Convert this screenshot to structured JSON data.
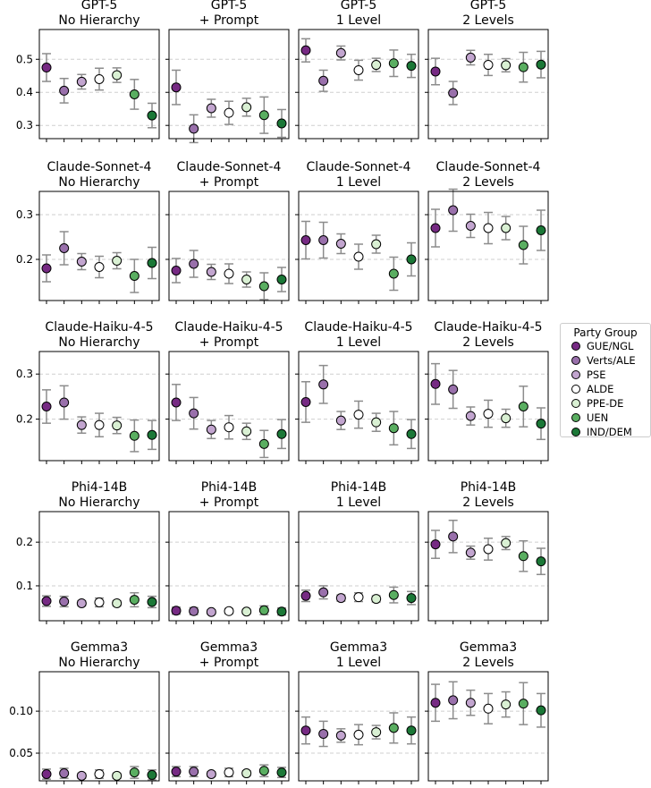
{
  "chart_data": {
    "type": "scatter",
    "description_of_markers": "point estimates with error bars per party group",
    "legend": {
      "title": "Party Group",
      "placement": "right",
      "entries": [
        {
          "name": "GUE/NGL",
          "color": "#762a83"
        },
        {
          "name": "Verts/ALE",
          "color": "#9970ab"
        },
        {
          "name": "PSE",
          "color": "#c2a5cf"
        },
        {
          "name": "ALDE",
          "color": "#ffffff"
        },
        {
          "name": "PPE-DE",
          "color": "#d9f0d3"
        },
        {
          "name": "UEN",
          "color": "#5aae61"
        },
        {
          "name": "IND/DEM",
          "color": "#1b7837"
        }
      ]
    },
    "grid": "dashed horizontal",
    "rows": [
      {
        "model": "GPT-5",
        "yticks": [
          "0.3",
          "0.4",
          "0.5"
        ],
        "yticks_values": [
          0.3,
          0.4,
          0.5
        ],
        "ylim": [
          0.26,
          0.59
        ],
        "panels": [
          {
            "title_line1": "GPT-5",
            "title_line2": "No Hierarchy",
            "values": [
              0.475,
              0.405,
              0.432,
              0.44,
              0.452,
              0.394,
              0.33
            ],
            "errors": [
              0.042,
              0.037,
              0.022,
              0.033,
              0.022,
              0.045,
              0.037
            ]
          },
          {
            "title_line1": "GPT-5",
            "title_line2": "+ Prompt",
            "values": [
              0.415,
              0.29,
              0.352,
              0.338,
              0.355,
              0.331,
              0.306
            ],
            "errors": [
              0.052,
              0.042,
              0.027,
              0.035,
              0.027,
              0.055,
              0.042
            ]
          },
          {
            "title_line1": "GPT-5",
            "title_line2": "1 Level",
            "values": [
              0.527,
              0.435,
              0.519,
              0.467,
              0.483,
              0.488,
              0.48
            ],
            "errors": [
              0.035,
              0.032,
              0.021,
              0.03,
              0.02,
              0.04,
              0.035
            ]
          },
          {
            "title_line1": "GPT-5",
            "title_line2": "2 Levels",
            "values": [
              0.463,
              0.398,
              0.505,
              0.483,
              0.482,
              0.476,
              0.484
            ],
            "errors": [
              0.04,
              0.035,
              0.022,
              0.032,
              0.02,
              0.045,
              0.04
            ]
          }
        ]
      },
      {
        "model": "Claude-Sonnet-4",
        "yticks": [
          "0.2",
          "0.3"
        ],
        "yticks_values": [
          0.2,
          0.3
        ],
        "ylim": [
          0.108,
          0.352
        ],
        "panels": [
          {
            "title_line1": "Claude-Sonnet-4",
            "title_line2": "No Hierarchy",
            "values": [
              0.18,
              0.225,
              0.195,
              0.183,
              0.197,
              0.163,
              0.192
            ],
            "errors": [
              0.03,
              0.037,
              0.018,
              0.024,
              0.018,
              0.037,
              0.035
            ]
          },
          {
            "title_line1": "Claude-Sonnet-4",
            "title_line2": "+ Prompt",
            "values": [
              0.175,
              0.19,
              0.172,
              0.168,
              0.155,
              0.14,
              0.155
            ],
            "errors": [
              0.027,
              0.03,
              0.017,
              0.022,
              0.017,
              0.03,
              0.027
            ]
          },
          {
            "title_line1": "Claude-Sonnet-4",
            "title_line2": "1 Level",
            "values": [
              0.243,
              0.243,
              0.235,
              0.206,
              0.234,
              0.168,
              0.2
            ],
            "errors": [
              0.042,
              0.04,
              0.022,
              0.028,
              0.02,
              0.037,
              0.037
            ]
          },
          {
            "title_line1": "Claude-Sonnet-4",
            "title_line2": "2 Levels",
            "values": [
              0.27,
              0.31,
              0.275,
              0.27,
              0.27,
              0.232,
              0.265
            ],
            "errors": [
              0.042,
              0.047,
              0.026,
              0.035,
              0.026,
              0.042,
              0.045
            ]
          }
        ]
      },
      {
        "model": "Claude-Haiku-4-5",
        "yticks": [
          "0.2",
          "0.3"
        ],
        "yticks_values": [
          0.2,
          0.3
        ],
        "ylim": [
          0.108,
          0.35
        ],
        "panels": [
          {
            "title_line1": "Claude-Haiku-4-5",
            "title_line2": "No Hierarchy",
            "values": [
              0.228,
              0.237,
              0.187,
              0.187,
              0.186,
              0.163,
              0.165
            ],
            "errors": [
              0.037,
              0.037,
              0.018,
              0.026,
              0.018,
              0.035,
              0.032
            ]
          },
          {
            "title_line1": "Claude-Haiku-4-5",
            "title_line2": "+ Prompt",
            "values": [
              0.237,
              0.213,
              0.177,
              0.182,
              0.173,
              0.145,
              0.167
            ],
            "errors": [
              0.04,
              0.035,
              0.02,
              0.026,
              0.018,
              0.03,
              0.032
            ]
          },
          {
            "title_line1": "Claude-Haiku-4-5",
            "title_line2": "1 Level",
            "values": [
              0.238,
              0.277,
              0.197,
              0.21,
              0.193,
              0.18,
              0.167
            ],
            "errors": [
              0.045,
              0.042,
              0.02,
              0.03,
              0.02,
              0.037,
              0.032
            ]
          },
          {
            "title_line1": "Claude-Haiku-4-5",
            "title_line2": "2 Levels",
            "values": [
              0.278,
              0.266,
              0.207,
              0.212,
              0.202,
              0.228,
              0.19
            ],
            "errors": [
              0.045,
              0.042,
              0.02,
              0.03,
              0.02,
              0.045,
              0.035
            ]
          }
        ]
      },
      {
        "model": "Phi4-14B",
        "yticks": [
          "0.1",
          "0.2"
        ],
        "yticks_values": [
          0.1,
          0.2
        ],
        "ylim": [
          0.02,
          0.27
        ],
        "panels": [
          {
            "title_line1": "Phi4-14B",
            "title_line2": "No Hierarchy",
            "values": [
              0.065,
              0.064,
              0.06,
              0.062,
              0.06,
              0.068,
              0.063
            ],
            "errors": [
              0.012,
              0.012,
              0.006,
              0.01,
              0.006,
              0.016,
              0.013
            ]
          },
          {
            "title_line1": "Phi4-14B",
            "title_line2": "+ Prompt",
            "values": [
              0.043,
              0.042,
              0.04,
              0.042,
              0.041,
              0.044,
              0.041
            ],
            "errors": [
              0.008,
              0.008,
              0.005,
              0.006,
              0.005,
              0.01,
              0.008
            ]
          },
          {
            "title_line1": "Phi4-14B",
            "title_line2": "1 Level",
            "values": [
              0.077,
              0.085,
              0.072,
              0.074,
              0.07,
              0.079,
              0.072
            ],
            "errors": [
              0.013,
              0.015,
              0.007,
              0.01,
              0.007,
              0.018,
              0.015
            ]
          },
          {
            "title_line1": "Phi4-14B",
            "title_line2": "2 Levels",
            "values": [
              0.195,
              0.213,
              0.176,
              0.184,
              0.198,
              0.168,
              0.156
            ],
            "errors": [
              0.032,
              0.037,
              0.015,
              0.025,
              0.015,
              0.035,
              0.03
            ]
          }
        ]
      },
      {
        "model": "Gemma3",
        "yticks": [
          "0.05",
          "0.10"
        ],
        "yticks_values": [
          0.05,
          0.1
        ],
        "ylim": [
          0.017,
          0.147
        ],
        "panels": [
          {
            "title_line1": "Gemma3",
            "title_line2": "No Hierarchy",
            "values": [
              0.025,
              0.026,
              0.023,
              0.025,
              0.023,
              0.027,
              0.024
            ],
            "errors": [
              0.006,
              0.006,
              0.003,
              0.005,
              0.003,
              0.007,
              0.006
            ]
          },
          {
            "title_line1": "Gemma3",
            "title_line2": "+ Prompt",
            "values": [
              0.028,
              0.028,
              0.025,
              0.027,
              0.026,
              0.029,
              0.027
            ],
            "errors": [
              0.006,
              0.006,
              0.003,
              0.005,
              0.003,
              0.007,
              0.006
            ]
          },
          {
            "title_line1": "Gemma3",
            "title_line2": "1 Level",
            "values": [
              0.077,
              0.073,
              0.071,
              0.072,
              0.075,
              0.08,
              0.077
            ],
            "errors": [
              0.016,
              0.015,
              0.008,
              0.012,
              0.008,
              0.018,
              0.016
            ]
          },
          {
            "title_line1": "Gemma3",
            "title_line2": "2 Levels",
            "values": [
              0.11,
              0.113,
              0.11,
              0.103,
              0.108,
              0.109,
              0.101
            ],
            "errors": [
              0.022,
              0.022,
              0.015,
              0.018,
              0.015,
              0.025,
              0.02
            ]
          }
        ]
      }
    ]
  }
}
